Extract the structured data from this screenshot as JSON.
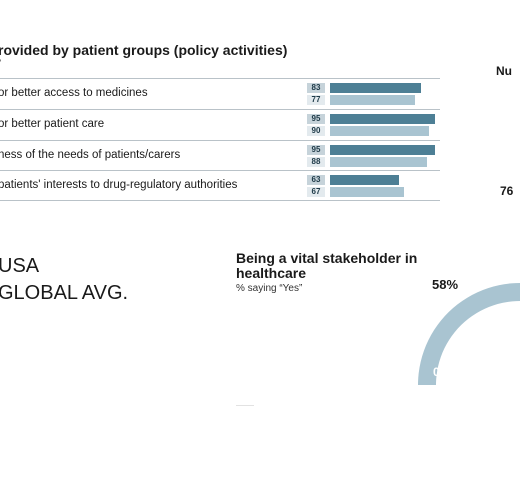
{
  "chart_data": [
    {
      "type": "bar",
      "title": "rovided by patient groups (policy activities)",
      "subtitle_mark": "\"",
      "categories": [
        "or better access to medicines",
        "or better patient care",
        "ness of the needs of patients/carers",
        "patients' interests to drug-regulatory authorities"
      ],
      "series": [
        {
          "name": "USA",
          "values": [
            83,
            95,
            95,
            63
          ]
        },
        {
          "name": "GLOBAL AVG.",
          "values": [
            77,
            90,
            88,
            67
          ]
        }
      ],
      "xlim": [
        0,
        100
      ],
      "legend": "bottom-left",
      "colors": {
        "series_a": "#4d7f95",
        "series_b": "#a9c4d1"
      }
    },
    {
      "type": "pie",
      "title": "Being a vital stakeholder in healthcare",
      "subtitle": "% saying “Yes”",
      "value": 58,
      "range_min_label": "0%",
      "value_label": "58%",
      "colors": {
        "arc": "#a9c4d1"
      }
    }
  ],
  "right_panel": {
    "partial_title": "Nu",
    "partial_number": "76"
  },
  "legend": {
    "usa": "USA",
    "global": "GLOBAL AVG."
  }
}
